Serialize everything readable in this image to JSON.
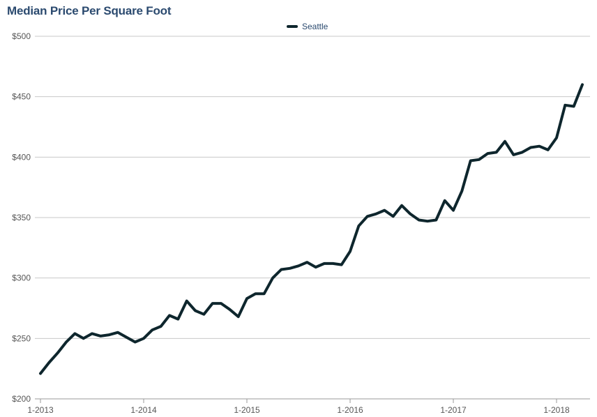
{
  "chart_data": {
    "type": "line",
    "title": "Median Price Per Square Foot",
    "xlabel": "",
    "ylabel": "",
    "ylim": [
      200,
      500
    ],
    "y_ticks": [
      200,
      250,
      300,
      350,
      400,
      450,
      500
    ],
    "y_tick_labels": [
      "$200",
      "$250",
      "$300",
      "$350",
      "$400",
      "$450",
      "$500"
    ],
    "x_ticks": [
      0,
      12,
      24,
      36,
      48,
      60
    ],
    "x_tick_labels": [
      "1-2013",
      "1-2014",
      "1-2015",
      "1-2016",
      "1-2017",
      "1-2018"
    ],
    "x_range": [
      0,
      65
    ],
    "grid": true,
    "legend_position": "top-center",
    "series": [
      {
        "name": "Seattle",
        "color": "#0e262d",
        "values": [
          221,
          230,
          238,
          247,
          254,
          250,
          254,
          252,
          253,
          255,
          251,
          247,
          250,
          257,
          260,
          269,
          266,
          281,
          273,
          270,
          279,
          279,
          274,
          268,
          283,
          287,
          287,
          300,
          307,
          308,
          310,
          313,
          309,
          312,
          312,
          311,
          322,
          343,
          351,
          353,
          356,
          351,
          360,
          353,
          348,
          347,
          348,
          364,
          356,
          372,
          397,
          398,
          403,
          404,
          413,
          402,
          404,
          408,
          409,
          406,
          416,
          443,
          442,
          460
        ]
      }
    ]
  }
}
